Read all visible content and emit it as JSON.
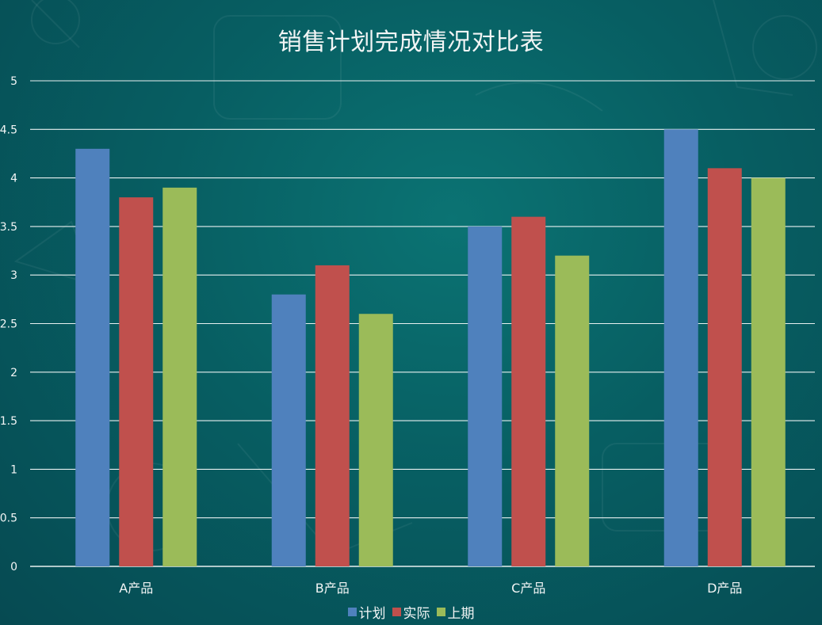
{
  "chart_data": {
    "type": "bar",
    "title": "销售计划完成情况对比表",
    "categories": [
      "A产品",
      "B产品",
      "C产品",
      "D产品"
    ],
    "series": [
      {
        "name": "计划",
        "color": "#4f81bd",
        "values": [
          4.3,
          2.8,
          3.5,
          4.5
        ]
      },
      {
        "name": "实际",
        "color": "#c0504d",
        "values": [
          3.8,
          3.1,
          3.6,
          4.1
        ]
      },
      {
        "name": "上期",
        "color": "#9bbb59",
        "values": [
          3.9,
          2.6,
          3.2,
          4.0
        ]
      }
    ],
    "ylim": [
      0,
      5
    ],
    "yticks": [
      "0",
      "0.5",
      "1",
      "1.5",
      "2",
      "2.5",
      "3",
      "3.5",
      "4",
      "4.5",
      "5"
    ],
    "grid": true,
    "legend_position": "bottom",
    "xlabel": "",
    "ylabel": ""
  },
  "style": {
    "background": "#075e62",
    "grid_color": "#e8f0f0",
    "text_color": "#f2f5f5"
  }
}
